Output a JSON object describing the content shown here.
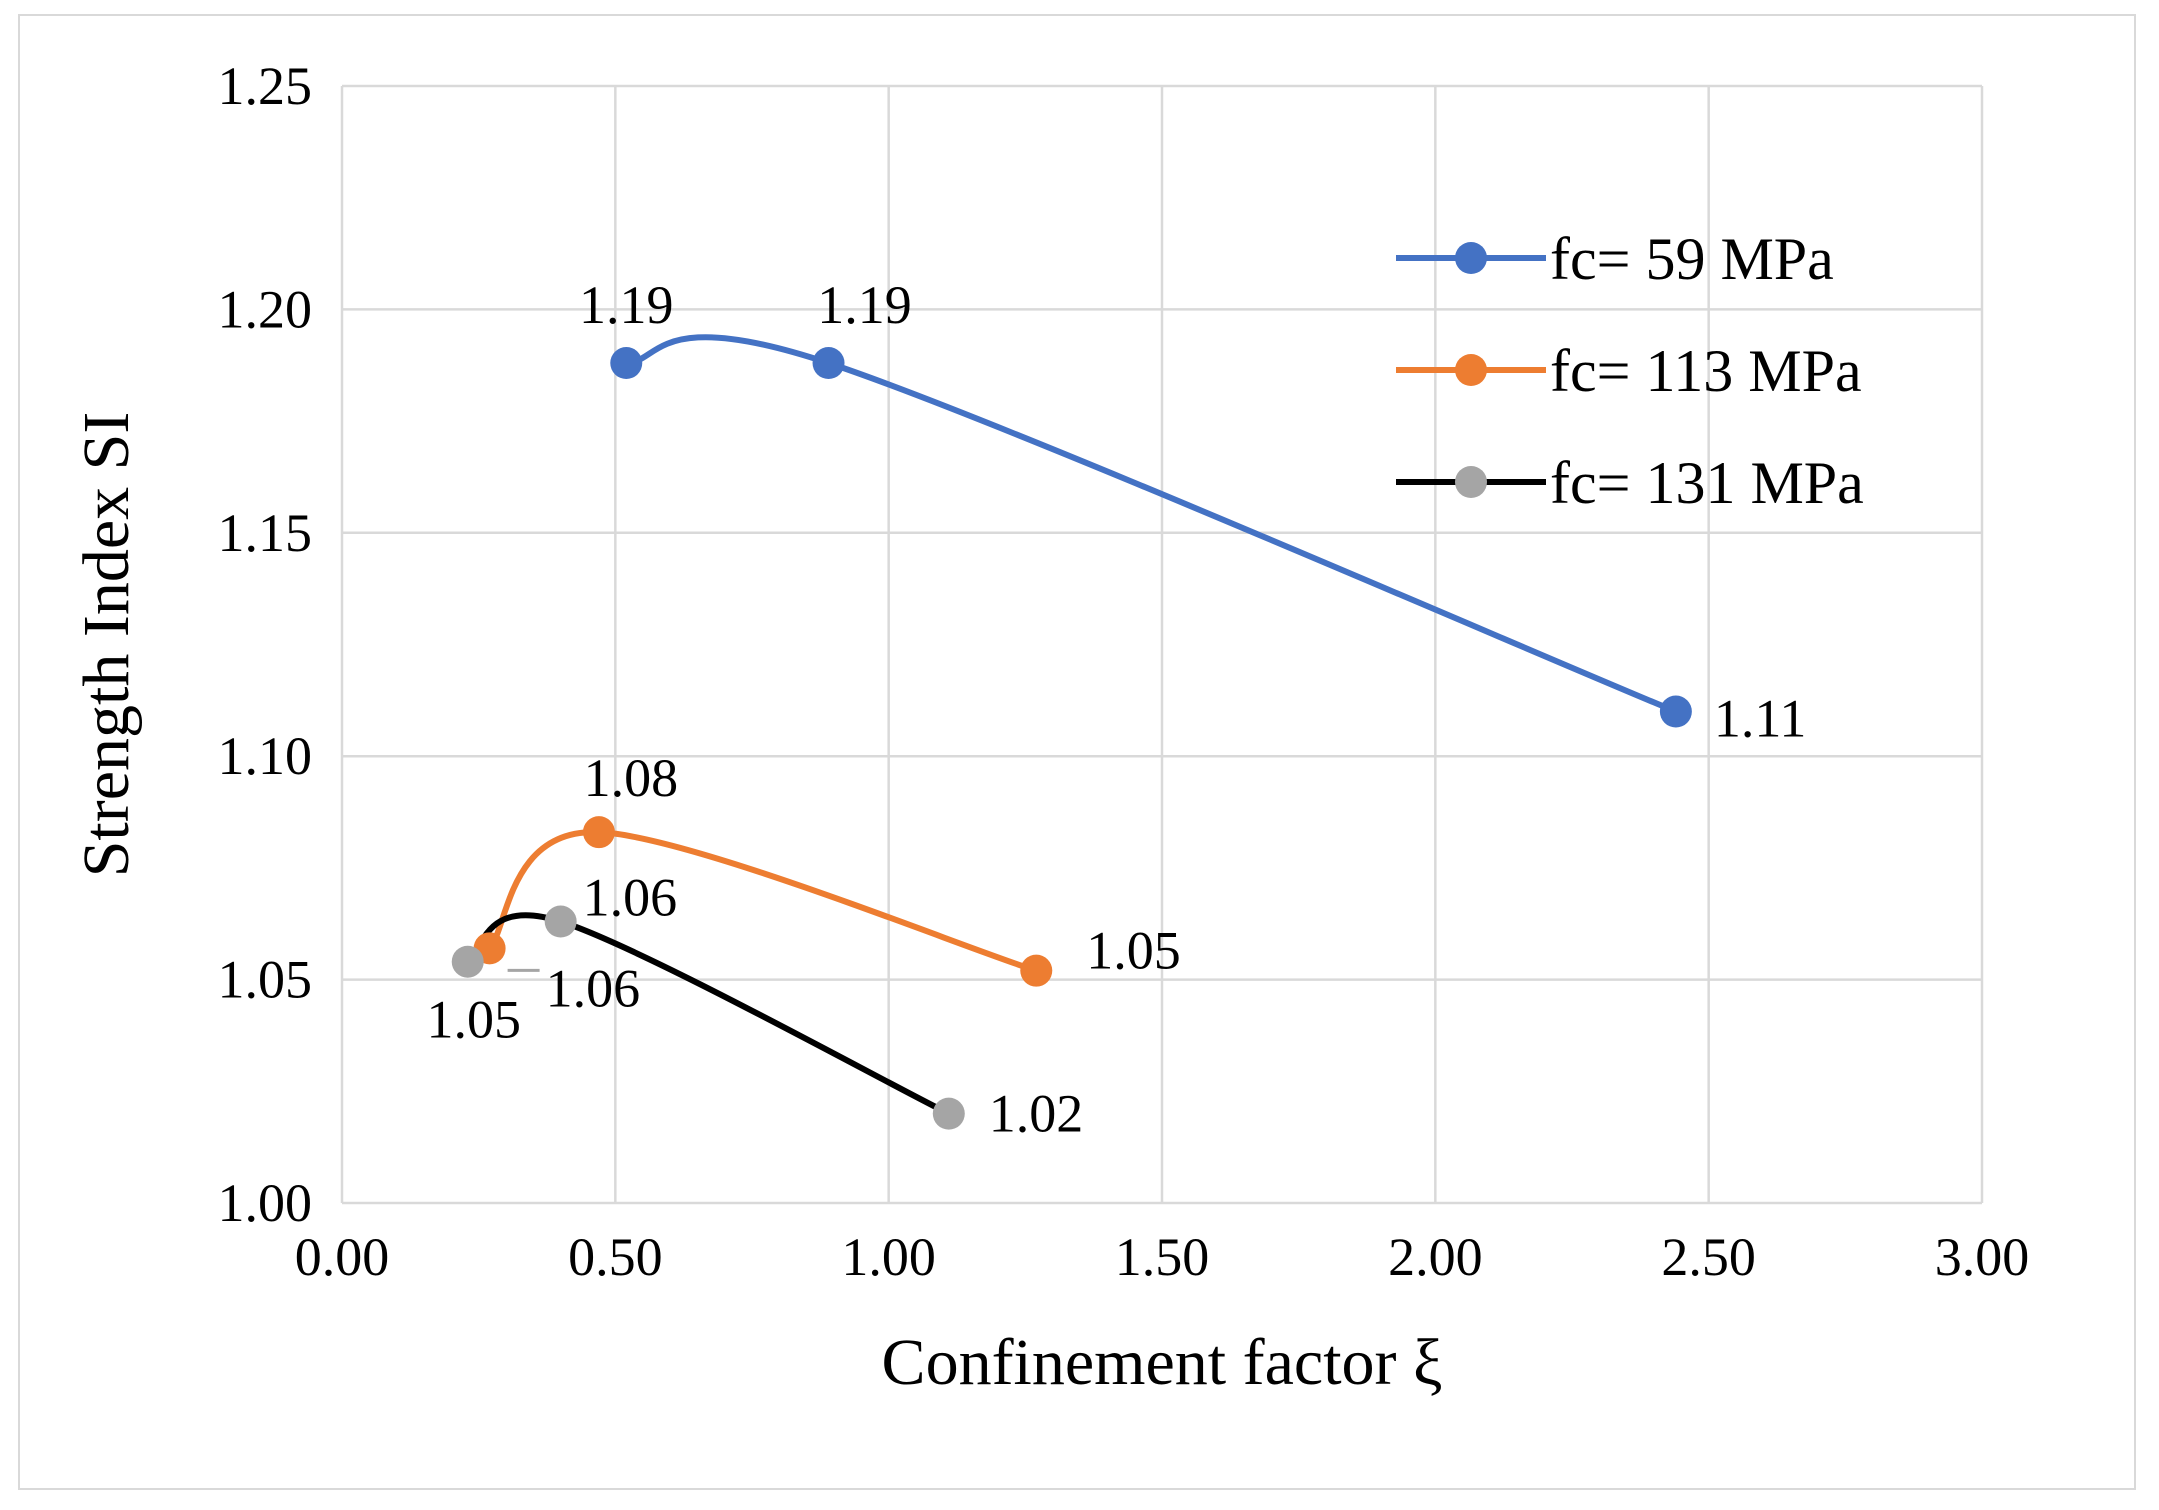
{
  "chart_data": {
    "type": "line",
    "xlabel": "Confinement factor ξ",
    "ylabel": "Strength Index SI",
    "xlim": [
      0.0,
      3.0
    ],
    "ylim": [
      1.0,
      1.25
    ],
    "x_ticks": [
      "0.00",
      "0.50",
      "1.00",
      "1.50",
      "2.00",
      "2.50",
      "3.00"
    ],
    "y_ticks": [
      "1.00",
      "1.05",
      "1.10",
      "1.15",
      "1.20",
      "1.25"
    ],
    "grid": true,
    "smooth": true,
    "legend_position": "top-right",
    "series": [
      {
        "name": "fc= 59 MPa",
        "color": "#4472c4",
        "x": [
          0.52,
          0.89,
          2.44
        ],
        "y": [
          1.188,
          1.188,
          1.11
        ],
        "labels": [
          "1.19",
          "1.19",
          "1.11"
        ]
      },
      {
        "name": "fc= 113 MPa",
        "color": "#ed7d31",
        "x": [
          0.27,
          0.47,
          1.27
        ],
        "y": [
          1.057,
          1.083,
          1.052
        ],
        "labels": [
          "1.06",
          "1.08",
          "1.05"
        ]
      },
      {
        "name": "fc= 131 MPa",
        "color": "#000000",
        "marker_color": "#a5a5a5",
        "x": [
          0.23,
          0.4,
          1.11
        ],
        "y": [
          1.054,
          1.063,
          1.02
        ],
        "labels": [
          "1.05",
          "1.06",
          "1.02"
        ]
      }
    ]
  }
}
